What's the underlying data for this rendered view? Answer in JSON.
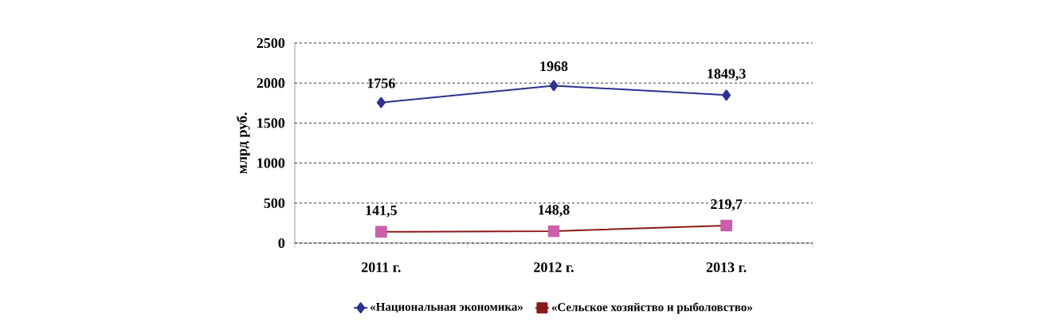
{
  "chart_data": {
    "type": "line",
    "ylabel": "млрд руб.",
    "categories": [
      "2011 г.",
      "2012 г.",
      "2013 г."
    ],
    "series": [
      {
        "name": "«Национальная экономика»",
        "color": "#2e3192",
        "marker": "diamond",
        "values": [
          1756,
          1968,
          1849.3
        ],
        "value_labels": [
          "1756",
          "1968",
          "1849,3"
        ]
      },
      {
        "name": "«Сельское хозяйство и рыболовство»",
        "color": "#8b1a1a",
        "colors": [
          "#cc5faa",
          "#cc5faa",
          "#cc5faa"
        ],
        "marker": "square",
        "values": [
          141.5,
          148.8,
          219.7
        ],
        "value_labels": [
          "141,5",
          "148,8",
          "219,7"
        ]
      }
    ],
    "ylim": [
      0,
      2500
    ],
    "yticks": [
      0,
      500,
      1000,
      1500,
      2000,
      2500
    ],
    "grid": "y",
    "legend": "bottom"
  }
}
